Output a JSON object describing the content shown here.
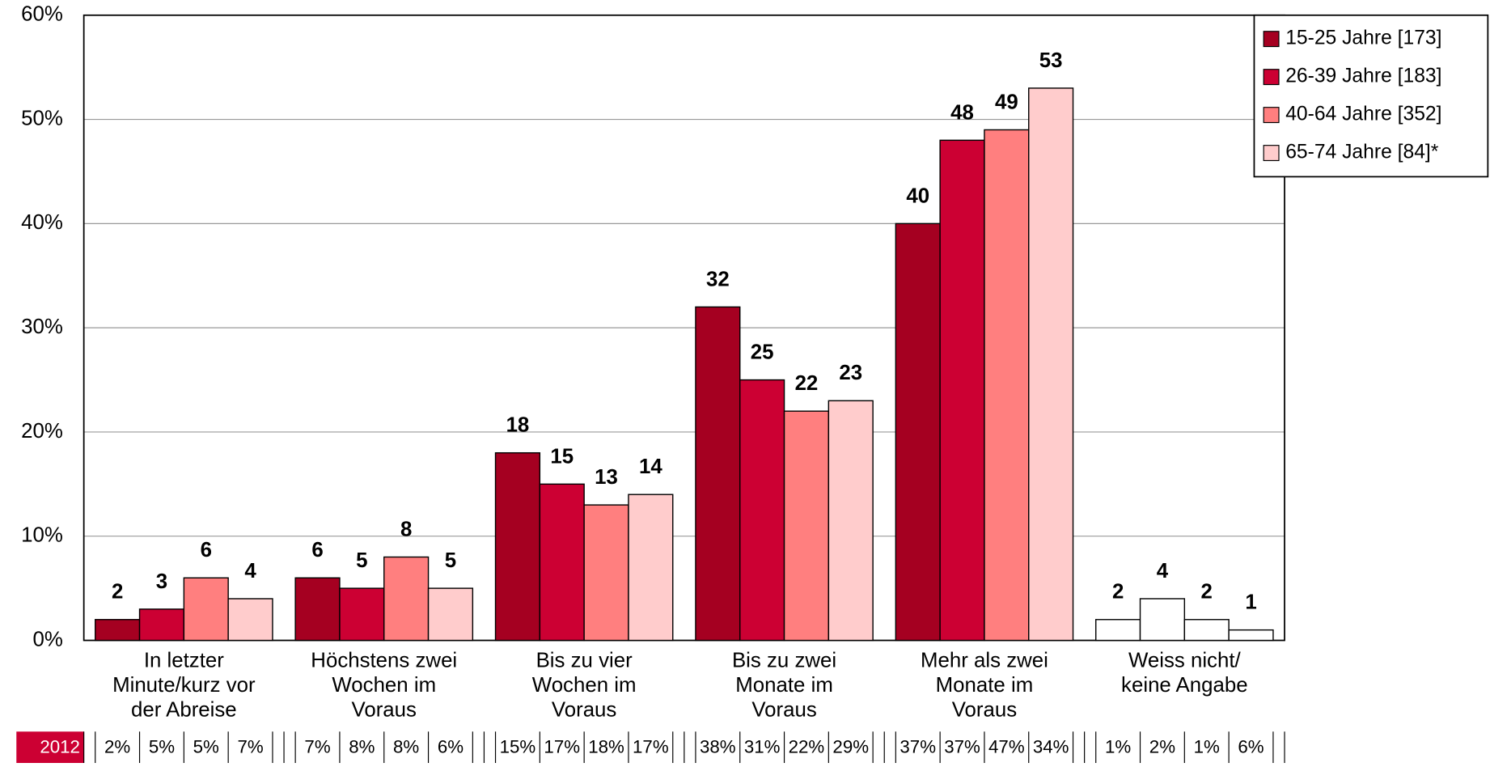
{
  "chart_data": {
    "type": "bar",
    "categories": [
      "In letzter\nMinute/kurz vor\nder Abreise",
      "Höchstens zwei\nWochen im\nVoraus",
      "Bis zu vier\nWochen im\nVoraus",
      "Bis zu zwei\nMonate im\nVoraus",
      "Mehr als zwei\nMonate im\nVoraus",
      "Weiss nicht/\nkeine Angabe"
    ],
    "series": [
      {
        "name": "15-25 Jahre [173]",
        "color": "#a50021",
        "values": [
          2,
          6,
          18,
          32,
          40,
          2
        ]
      },
      {
        "name": "26-39 Jahre [183]",
        "color": "#cc0033",
        "values": [
          3,
          5,
          15,
          25,
          48,
          4
        ]
      },
      {
        "name": "40-64 Jahre [352]",
        "color": "#ff7f7f",
        "values": [
          6,
          8,
          13,
          22,
          49,
          2
        ]
      },
      {
        "name": "65-74 Jahre [84]*",
        "color": "#ffcccc",
        "values": [
          4,
          5,
          14,
          23,
          53,
          1
        ]
      }
    ],
    "neutral_categories": [
      5
    ],
    "neutral_color": "#ffffff",
    "ylim": [
      0,
      60
    ],
    "yticks": [
      {
        "value": 0,
        "label": "0%"
      },
      {
        "value": 10,
        "label": "10%"
      },
      {
        "value": 20,
        "label": "20%"
      },
      {
        "value": 30,
        "label": "30%"
      },
      {
        "value": 40,
        "label": "40%"
      },
      {
        "value": 50,
        "label": "50%"
      },
      {
        "value": 60,
        "label": "60%"
      }
    ],
    "grid": true,
    "legend": "top-right",
    "table_row": {
      "label": "2012",
      "color": "#cc0033",
      "cells": [
        [
          "2%",
          "5%",
          "5%",
          "7%"
        ],
        [
          "7%",
          "8%",
          "8%",
          "6%"
        ],
        [
          "15%",
          "17%",
          "18%",
          "17%"
        ],
        [
          "38%",
          "31%",
          "22%",
          "29%"
        ],
        [
          "37%",
          "37%",
          "47%",
          "34%"
        ],
        [
          "1%",
          "2%",
          "1%",
          "6%"
        ]
      ]
    }
  }
}
